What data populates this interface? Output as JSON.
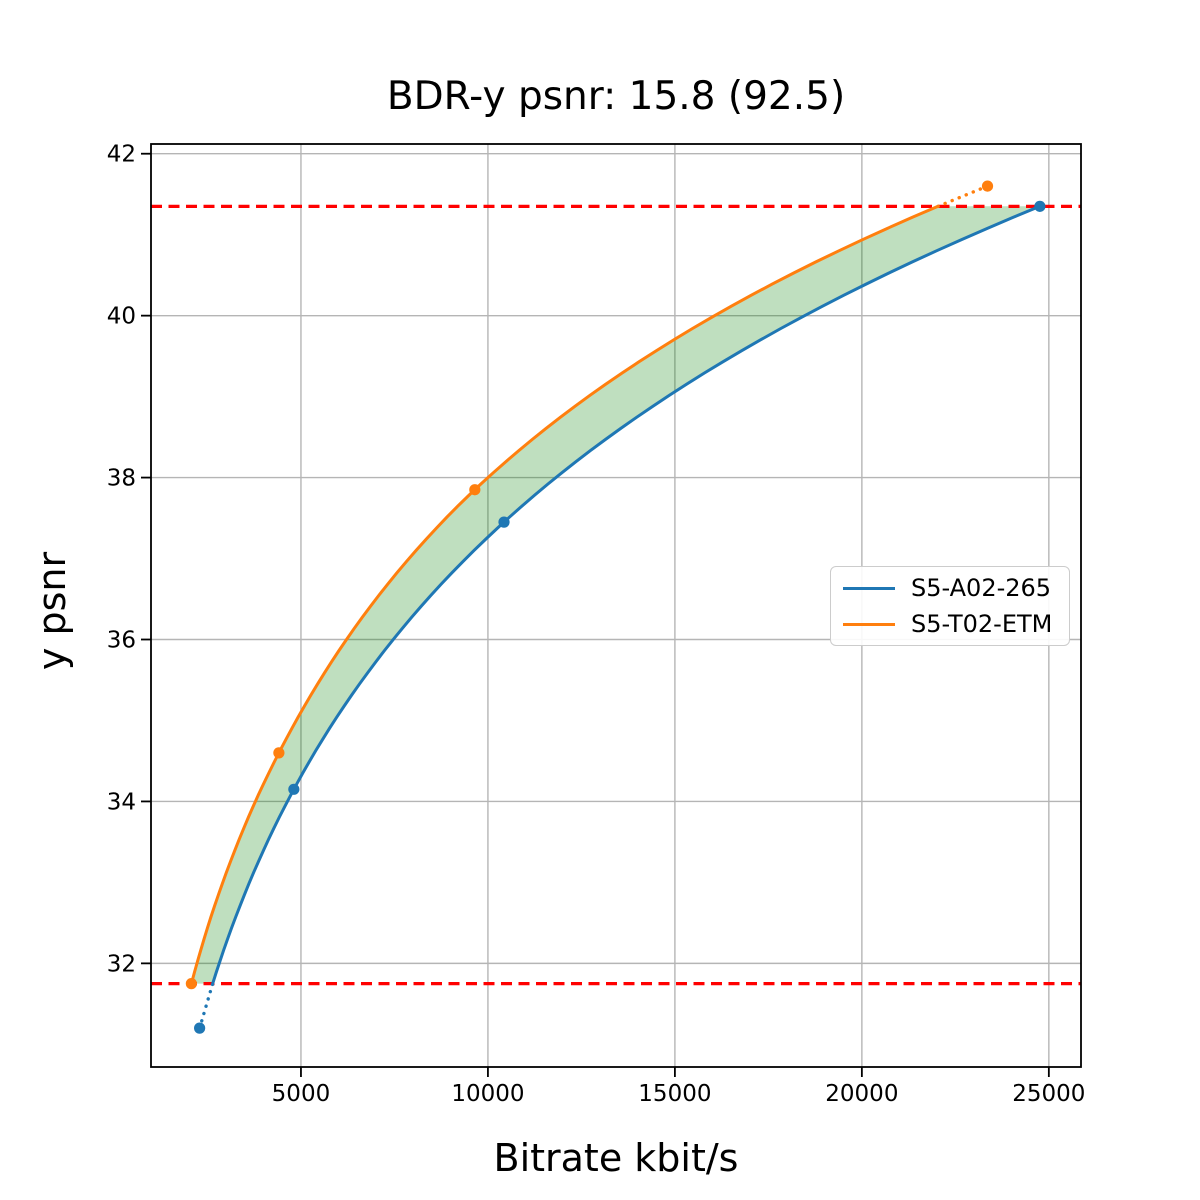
{
  "chart_data": {
    "type": "line",
    "title": "BDR-y psnr: 15.8 (92.5)",
    "xlabel": "Bitrate kbit/s",
    "ylabel": "y psnr",
    "xlim": [
      990,
      25860
    ],
    "ylim": [
      30.72,
      42.12
    ],
    "x_ticks": [
      5000,
      10000,
      15000,
      20000,
      25000
    ],
    "x_tick_labels": [
      "5000",
      "10000",
      "15000",
      "20000",
      "25000"
    ],
    "y_ticks": [
      32,
      34,
      36,
      38,
      40,
      42
    ],
    "y_tick_labels": [
      "32",
      "34",
      "36",
      "38",
      "40",
      "42"
    ],
    "grid": true,
    "grid_color": "#b5b5b5",
    "legend_position": "center right",
    "series": [
      {
        "name": "S5-A02-265",
        "color": "#1f77b4",
        "marker": "o",
        "points": [
          [
            2290,
            31.2
          ],
          [
            4810,
            34.15
          ],
          [
            10430,
            37.45
          ],
          [
            24760,
            41.35
          ]
        ]
      },
      {
        "name": "S5-T02-ETM",
        "color": "#ff7f0e",
        "marker": "o",
        "points": [
          [
            2070,
            31.75
          ],
          [
            4410,
            34.6
          ],
          [
            9650,
            37.85
          ],
          [
            23360,
            41.6
          ]
        ]
      }
    ],
    "bd_overlap_psnr_bounds": [
      31.75,
      41.35
    ],
    "bound_lines": {
      "color": "#ff0000",
      "style": "dashed",
      "values": [
        31.75,
        41.35
      ]
    },
    "fill_between": {
      "color": "#008000",
      "opacity": 0.25
    }
  }
}
